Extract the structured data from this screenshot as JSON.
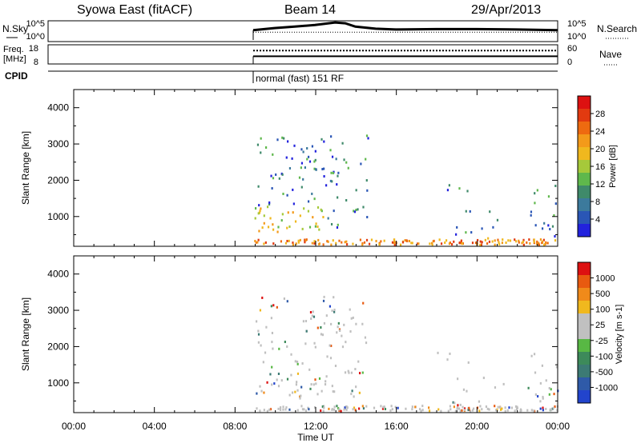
{
  "header": {
    "title": "Syowa East (fitACF)",
    "beam": "Beam 14",
    "date": "29/Apr/2013"
  },
  "top_panels": {
    "nsky_label": "N.Sky",
    "nsearch_label": "N.Search",
    "noise_ticks": [
      "10^5",
      "10^0"
    ],
    "freq_label_line1": "Freq.",
    "freq_label_line2": "[MHz]",
    "freq_ticks": [
      "18",
      "8"
    ],
    "nave_label": "Nave",
    "nave_ticks": [
      "60",
      "0"
    ],
    "cpid_label": "CPID",
    "cpid_value": "normal (fast) 151 RF"
  },
  "colors": {
    "power_scale": [
      "#2222dd",
      "#2a56b6",
      "#3c7a9c",
      "#3f8a6a",
      "#5fb84c",
      "#a6c93a",
      "#f0b81e",
      "#f39a1a",
      "#ee6a10",
      "#e23a10",
      "#dd1111"
    ],
    "velocity_scale": [
      "#2244cc",
      "#2f5aa8",
      "#3c7a74",
      "#3d8a5a",
      "#58b844",
      "#c0c0c0",
      "#c0c0c0",
      "#f0b81e",
      "#f08a1a",
      "#e85a10",
      "#dd1111"
    ]
  },
  "chart_data": [
    {
      "type": "heatmap",
      "name": "power-panel",
      "title": "",
      "xlabel": "Time UT",
      "ylabel": "Slant Range [km]",
      "xlim_hours": [
        0,
        24
      ],
      "ylim_km": [
        180,
        4500
      ],
      "x_ticks": [
        "00:00",
        "04:00",
        "08:00",
        "12:00",
        "16:00",
        "20:00",
        "00:00"
      ],
      "y_ticks": [
        1000,
        2000,
        3000,
        4000
      ],
      "colorbar": {
        "label": "Power [dB]",
        "range": [
          0,
          30
        ],
        "tick_labels": [
          "28",
          "24",
          "20",
          "16",
          "12",
          "8",
          "4"
        ]
      },
      "data_start_hour": 8.95,
      "scatter_regions": [
        {
          "t0": 8.95,
          "t1": 14.6,
          "r0": 600,
          "r1": 3400,
          "level": 0.4
        },
        {
          "t0": 9.0,
          "t1": 12.5,
          "r0": 650,
          "r1": 1300,
          "level": 0.6
        },
        {
          "t0": 11.5,
          "t1": 13.5,
          "r0": 2000,
          "r1": 2900,
          "level": 0.45
        },
        {
          "t0": 17.8,
          "t1": 19.8,
          "r0": 1550,
          "r1": 1950,
          "level": 0.35
        },
        {
          "t0": 15.5,
          "t1": 16.2,
          "r0": 1800,
          "r1": 2100,
          "level": 0.25
        },
        {
          "t0": 18.5,
          "t1": 24.0,
          "r0": 300,
          "r1": 1200,
          "level": 0.3
        },
        {
          "t0": 22.5,
          "t1": 24.0,
          "r0": 300,
          "r1": 2000,
          "level": 0.3
        }
      ]
    },
    {
      "type": "heatmap",
      "name": "velocity-panel",
      "title": "",
      "xlabel": "Time UT",
      "ylabel": "Slant Range [km]",
      "xlim_hours": [
        0,
        24
      ],
      "ylim_km": [
        180,
        4500
      ],
      "x_ticks": [
        "00:00",
        "04:00",
        "08:00",
        "12:00",
        "16:00",
        "20:00",
        "00:00"
      ],
      "y_ticks": [
        1000,
        2000,
        3000,
        4000
      ],
      "colorbar": {
        "label": "Velocity [m s-1]",
        "range": [
          -1200,
          1200
        ],
        "tick_labels": [
          "1000",
          "500",
          "100",
          "25",
          "-25",
          "-100",
          "-500",
          "-1000"
        ]
      },
      "data_start_hour": 8.95
    },
    {
      "type": "line",
      "name": "noise-panel",
      "x_hours": [
        8.95,
        10,
        11,
        12,
        13,
        13.5,
        14,
        15,
        16,
        18,
        20,
        22,
        24
      ],
      "noise_sky_fraction": [
        0.55,
        0.65,
        0.72,
        0.8,
        0.92,
        0.88,
        0.72,
        0.62,
        0.58,
        0.6,
        0.6,
        0.58,
        0.55
      ],
      "noise_search_fraction": 0.45
    },
    {
      "type": "line",
      "name": "freq-panel",
      "x_hours": [
        8.95,
        24
      ],
      "freq_level_fraction": 0.7,
      "nave_level_fraction": 0.4
    }
  ]
}
